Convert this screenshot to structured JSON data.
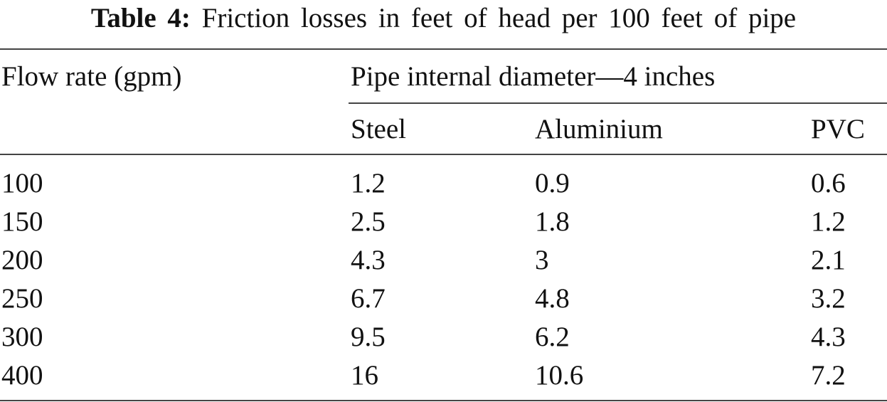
{
  "caption": {
    "label": "Table 4:",
    "text": "Friction losses in feet of head per 100 feet of pipe"
  },
  "table": {
    "row_header": "Flow rate (gpm)",
    "group_header": "Pipe internal diameter—4 inches",
    "columns": [
      "Steel",
      "Aluminium",
      "PVC"
    ],
    "rows": [
      [
        100,
        1.2,
        0.9,
        0.6
      ],
      [
        150,
        2.5,
        1.8,
        1.2
      ],
      [
        200,
        4.3,
        3,
        2.1
      ],
      [
        250,
        6.7,
        4.8,
        3.2
      ],
      [
        300,
        9.5,
        6.2,
        4.3
      ],
      [
        400,
        16,
        10.6,
        7.2
      ]
    ]
  }
}
